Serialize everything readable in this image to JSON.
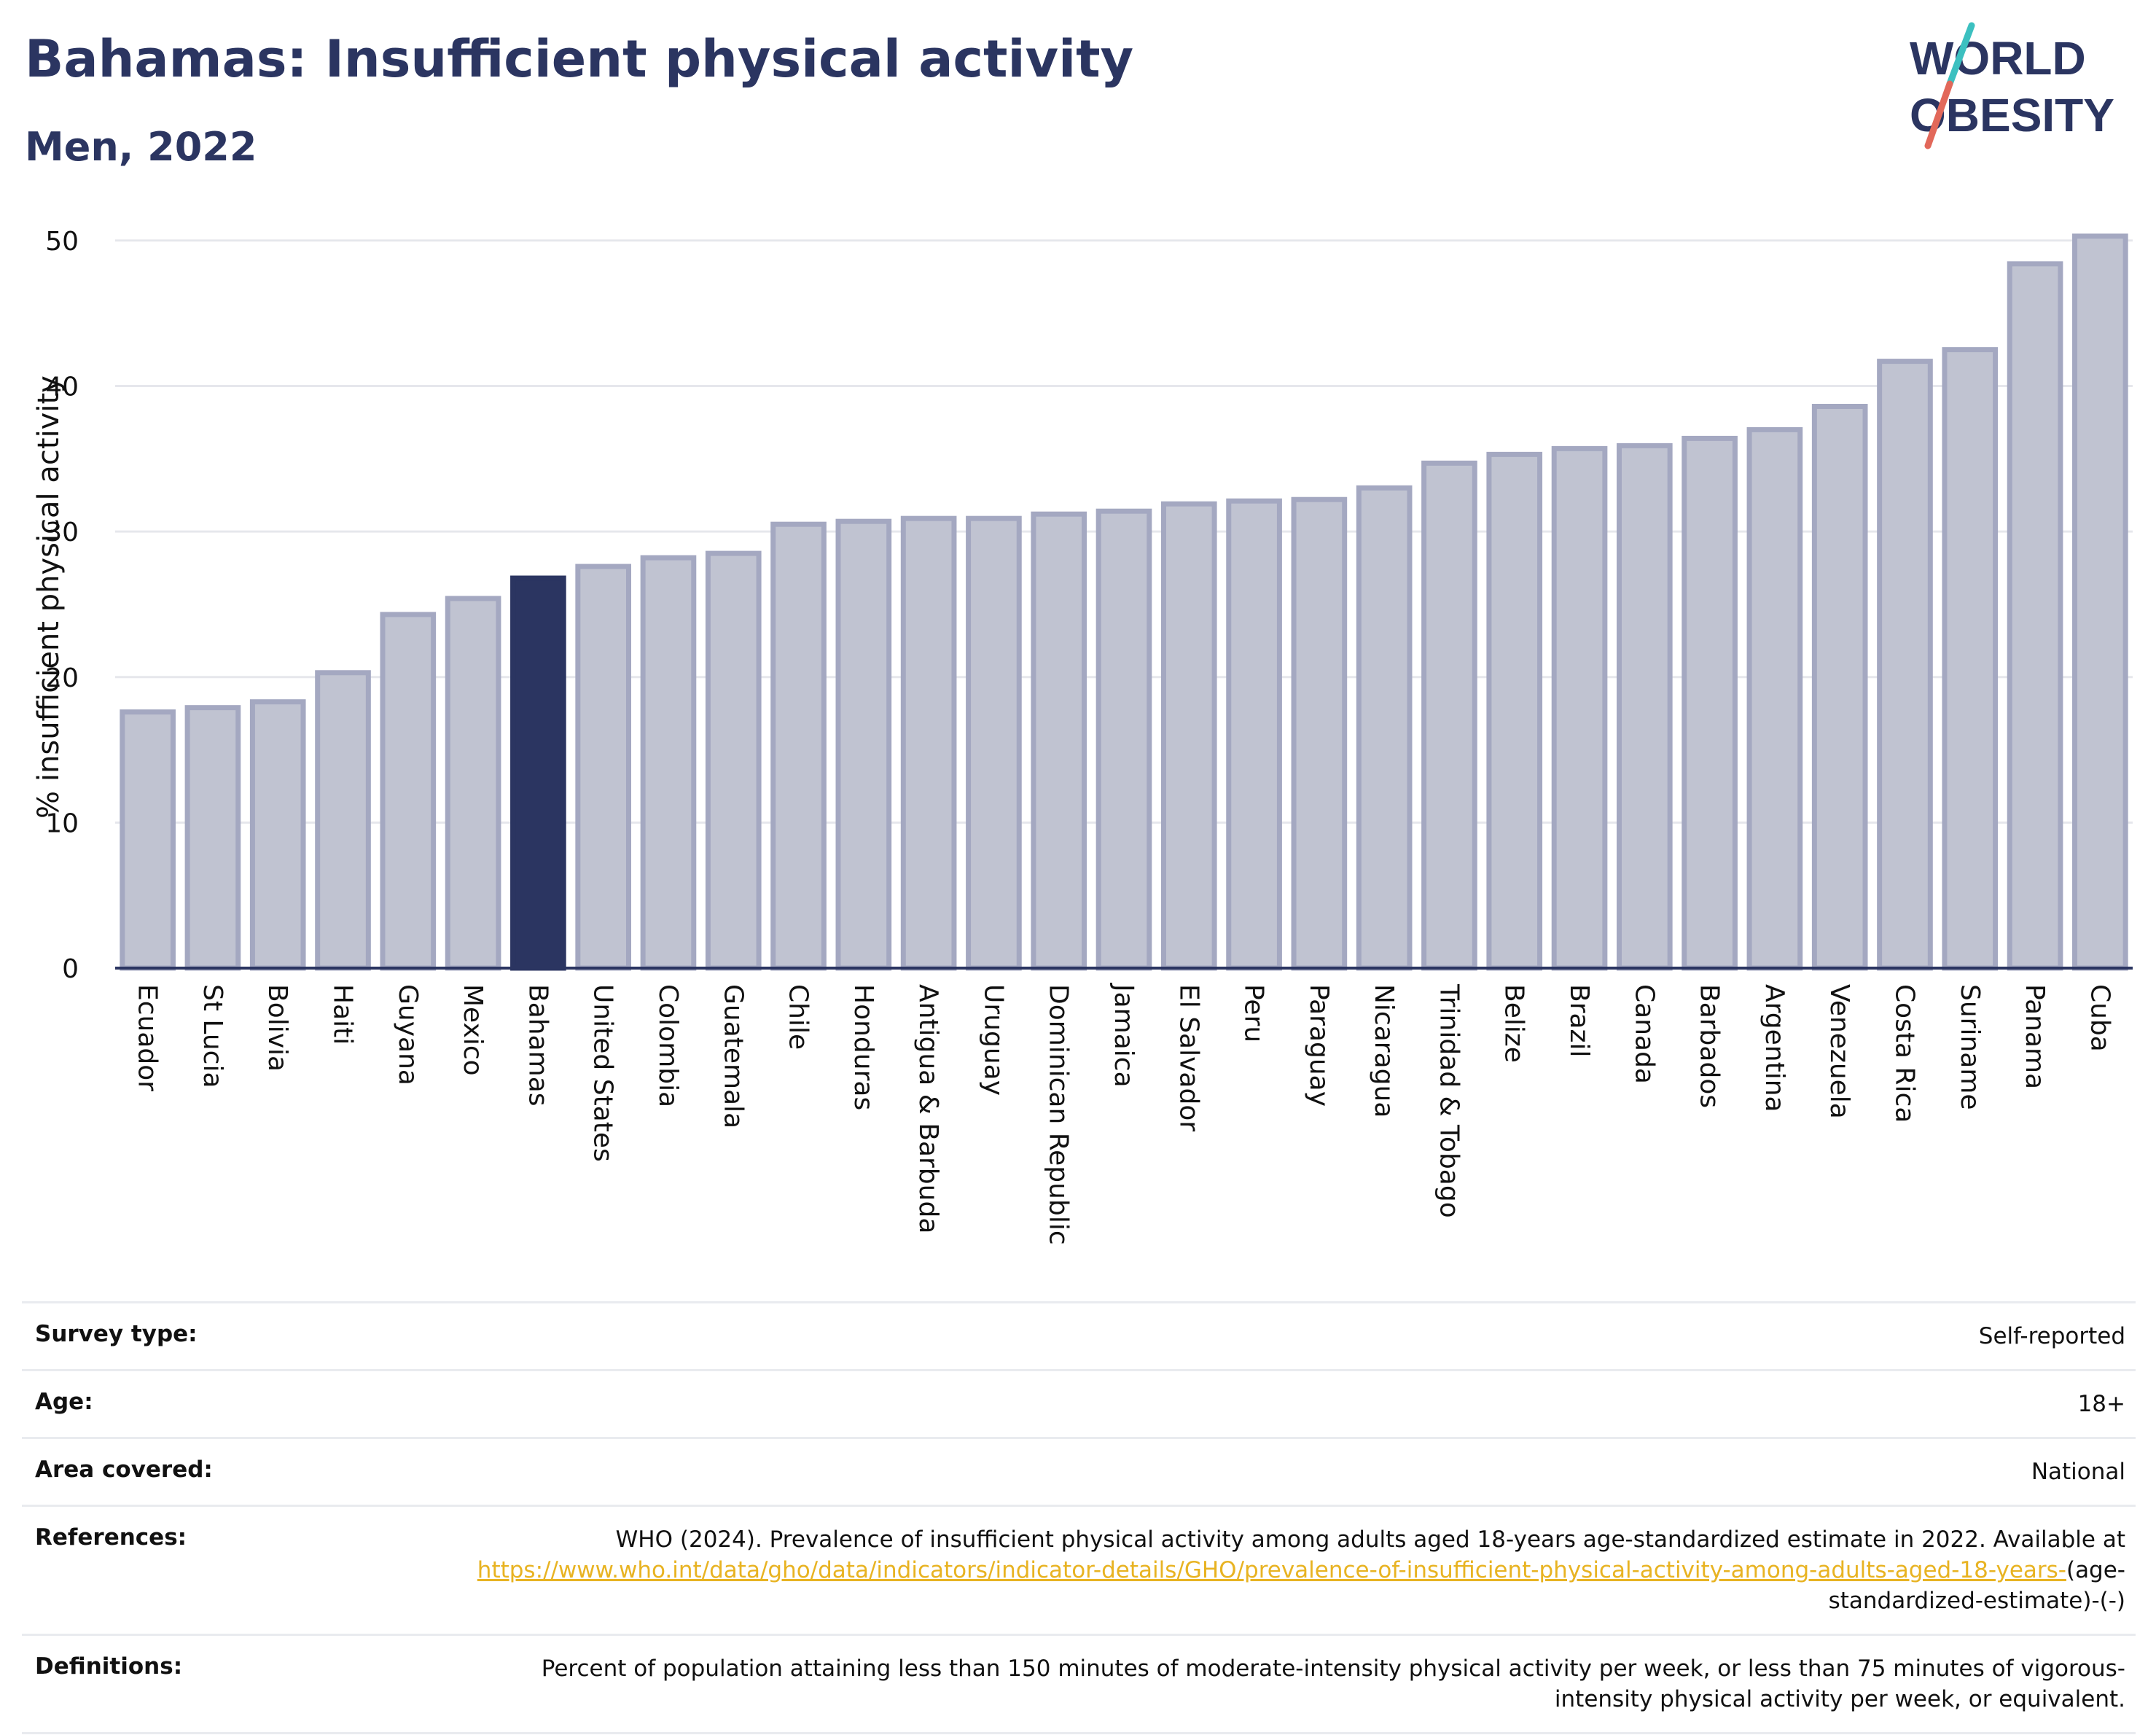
{
  "header": {
    "title": "Bahamas: Insufficient physical activity",
    "subtitle": "Men, 2022"
  },
  "logo": {
    "line1": "WORLD",
    "line2": "OBESITY"
  },
  "colors": {
    "highlight": "#2b3561",
    "bar": "#c0c3d1",
    "bar_border": "#a4a8c1",
    "link": "#e8b322"
  },
  "chart_data": {
    "type": "bar",
    "ylabel": "% insufficient physical activity",
    "ylim": [
      0,
      52
    ],
    "yticks": [
      0,
      10,
      20,
      30,
      40,
      50
    ],
    "grid": true,
    "highlight": "Bahamas",
    "categories": [
      "Ecuador",
      "St Lucia",
      "Bolivia",
      "Haiti",
      "Guyana",
      "Mexico",
      "Bahamas",
      "United States",
      "Colombia",
      "Guatemala",
      "Chile",
      "Honduras",
      "Antigua & Barbuda",
      "Uruguay",
      "Dominican Republic",
      "Jamaica",
      "El Salvador",
      "Peru",
      "Paraguay",
      "Nicaragua",
      "Trinidad & Tobago",
      "Belize",
      "Brazil",
      "Canada",
      "Barbados",
      "Argentina",
      "Venezuela",
      "Costa Rica",
      "Suriname",
      "Panama",
      "Cuba"
    ],
    "values": [
      17.6,
      17.9,
      18.3,
      20.3,
      24.3,
      25.4,
      26.8,
      27.6,
      28.2,
      28.5,
      30.5,
      30.7,
      30.9,
      30.9,
      31.2,
      31.4,
      31.9,
      32.1,
      32.2,
      33.0,
      34.7,
      35.3,
      35.7,
      35.9,
      36.4,
      37.0,
      38.6,
      41.7,
      42.5,
      48.4,
      50.3
    ]
  },
  "meta": {
    "survey_type_label": "Survey type:",
    "survey_type_value": "Self-reported",
    "age_label": "Age:",
    "age_value": "18+",
    "area_label": "Area covered:",
    "area_value": "National",
    "references_label": "References:",
    "references_text": "WHO (2024). Prevalence of insufficient physical activity among adults aged 18-years age-standardized estimate in 2022. Available at",
    "references_link": "https://www.who.int/data/gho/data/indicators/indicator-details/GHO/prevalence-of-insufficient-physical-activity-among-adults-aged-18-years-",
    "references_suffix": "(age-standardized-estimate)-(-)",
    "definitions_label": "Definitions:",
    "definitions_value": "Percent of population attaining less than 150 minutes of moderate-intensity physical activity per week, or less than 75 minutes of vigorous-intensity physical activity per week, or equivalent."
  }
}
